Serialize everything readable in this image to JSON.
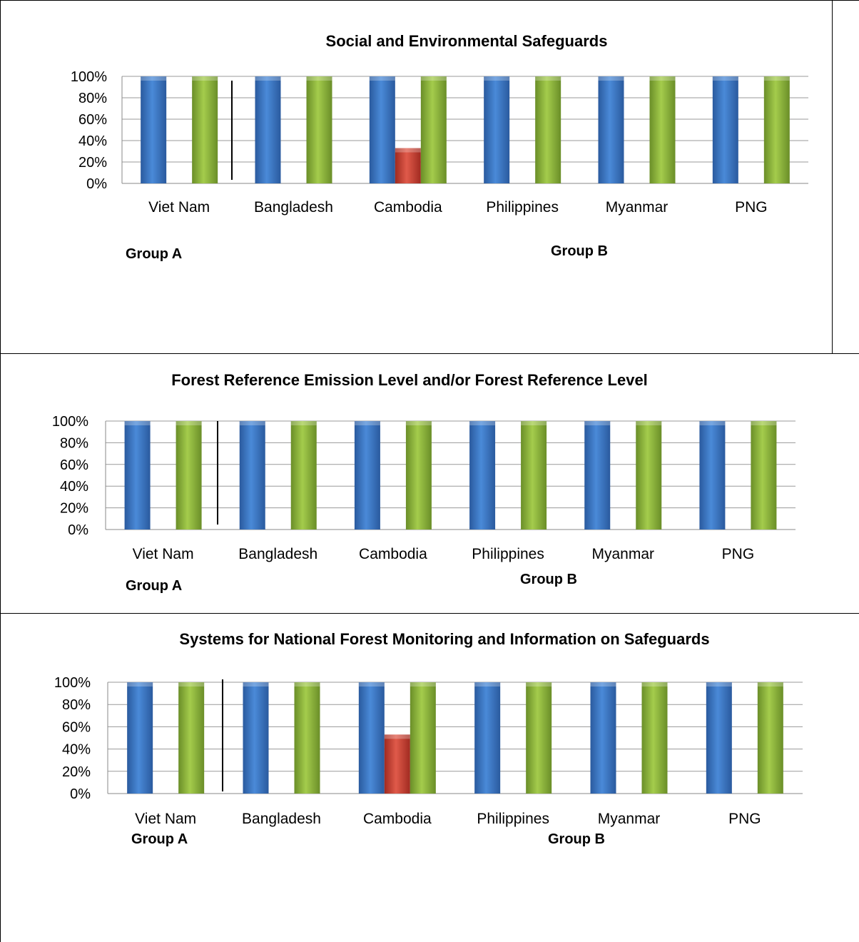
{
  "chart_data": [
    {
      "type": "bar",
      "title": "Social and Environmental Safeguards",
      "categories": [
        "Viet Nam",
        "Bangladesh",
        "Cambodia",
        "Philippines",
        "Myanmar",
        "PNG"
      ],
      "ylim": [
        0,
        100
      ],
      "yticks": [
        "100%",
        "80%",
        "60%",
        "40%",
        "20%",
        "0%"
      ],
      "grid": true,
      "series": [
        {
          "color": "#3c78c8",
          "values": [
            100,
            100,
            100,
            100,
            100,
            100
          ]
        },
        {
          "color": "#c0392b",
          "values": [
            0,
            0,
            33,
            0,
            0,
            0
          ]
        },
        {
          "color": "#8cb43c",
          "values": [
            100,
            100,
            100,
            100,
            100,
            100
          ]
        }
      ],
      "group_labels": [
        "Group A",
        "Group B"
      ]
    },
    {
      "type": "bar",
      "title": "Forest Reference Emission Level and/or Forest Reference Level",
      "categories": [
        "Viet Nam",
        "Bangladesh",
        "Cambodia",
        "Philippines",
        "Myanmar",
        "PNG"
      ],
      "ylim": [
        0,
        100
      ],
      "yticks": [
        "100%",
        "80%",
        "60%",
        "40%",
        "20%",
        "0%"
      ],
      "grid": true,
      "series": [
        {
          "color": "#3c78c8",
          "values": [
            100,
            100,
            100,
            100,
            100,
            100
          ]
        },
        {
          "color": "#c0392b",
          "values": [
            0,
            0,
            0,
            0,
            0,
            0
          ]
        },
        {
          "color": "#8cb43c",
          "values": [
            100,
            100,
            100,
            100,
            100,
            100
          ]
        }
      ],
      "group_labels": [
        "Group A",
        "Group B"
      ]
    },
    {
      "type": "bar",
      "title": "Systems for National Forest Monitoring and Information on Safeguards",
      "categories": [
        "Viet Nam",
        "Bangladesh",
        "Cambodia",
        "Philippines",
        "Myanmar",
        "PNG"
      ],
      "ylim": [
        0,
        100
      ],
      "yticks": [
        "100%",
        "80%",
        "60%",
        "40%",
        "20%",
        "0%"
      ],
      "grid": true,
      "series": [
        {
          "color": "#3c78c8",
          "values": [
            100,
            100,
            100,
            100,
            100,
            100
          ]
        },
        {
          "color": "#c0392b",
          "values": [
            0,
            0,
            53,
            0,
            0,
            0
          ]
        },
        {
          "color": "#8cb43c",
          "values": [
            100,
            100,
            100,
            100,
            100,
            100
          ]
        }
      ],
      "group_labels": [
        "Group A",
        "Group B"
      ]
    }
  ]
}
